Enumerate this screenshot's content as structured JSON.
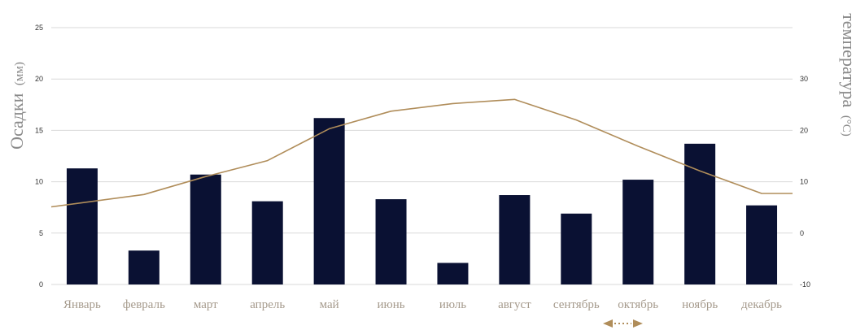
{
  "chart_data": {
    "type": "bar",
    "categories": [
      "Январь",
      "февраль",
      "март",
      "апрель",
      "май",
      "июнь",
      "июль",
      "август",
      "сентябрь",
      "октябрь",
      "ноябрь",
      "декабрь"
    ],
    "series": [
      {
        "values": [
          11.3,
          3.3,
          10.7,
          8.1,
          16.2,
          8.3,
          2.1,
          8.7,
          6.9,
          10.2,
          13.7,
          7.7
        ],
        "axis": "left",
        "style": "bar"
      },
      {
        "values": [
          5.9,
          7.5,
          11.0,
          14.1,
          20.3,
          23.7,
          25.2,
          26.0,
          22.0,
          16.9,
          12.1,
          7.7
        ],
        "axis": "right",
        "style": "line"
      }
    ],
    "ylabel": "Осадки",
    "ylabel_unit": "(мм)",
    "y2label": "температура",
    "y2label_unit": "(°C)",
    "ylim": [
      0,
      25
    ],
    "y2lim": [
      -10,
      30
    ],
    "yticks": [
      "0",
      "5",
      "10",
      "15",
      "20",
      "25"
    ],
    "y2ticks": [
      "-10",
      "0",
      "10",
      "20",
      "30"
    ],
    "grid": true,
    "colors": {
      "bars": "#0a1133",
      "line": "#b08d5a",
      "grid": "#d9d9d9",
      "labels": "#a59a8c"
    }
  },
  "scroll_indicator": {
    "icon": "double-arrow-icon"
  }
}
